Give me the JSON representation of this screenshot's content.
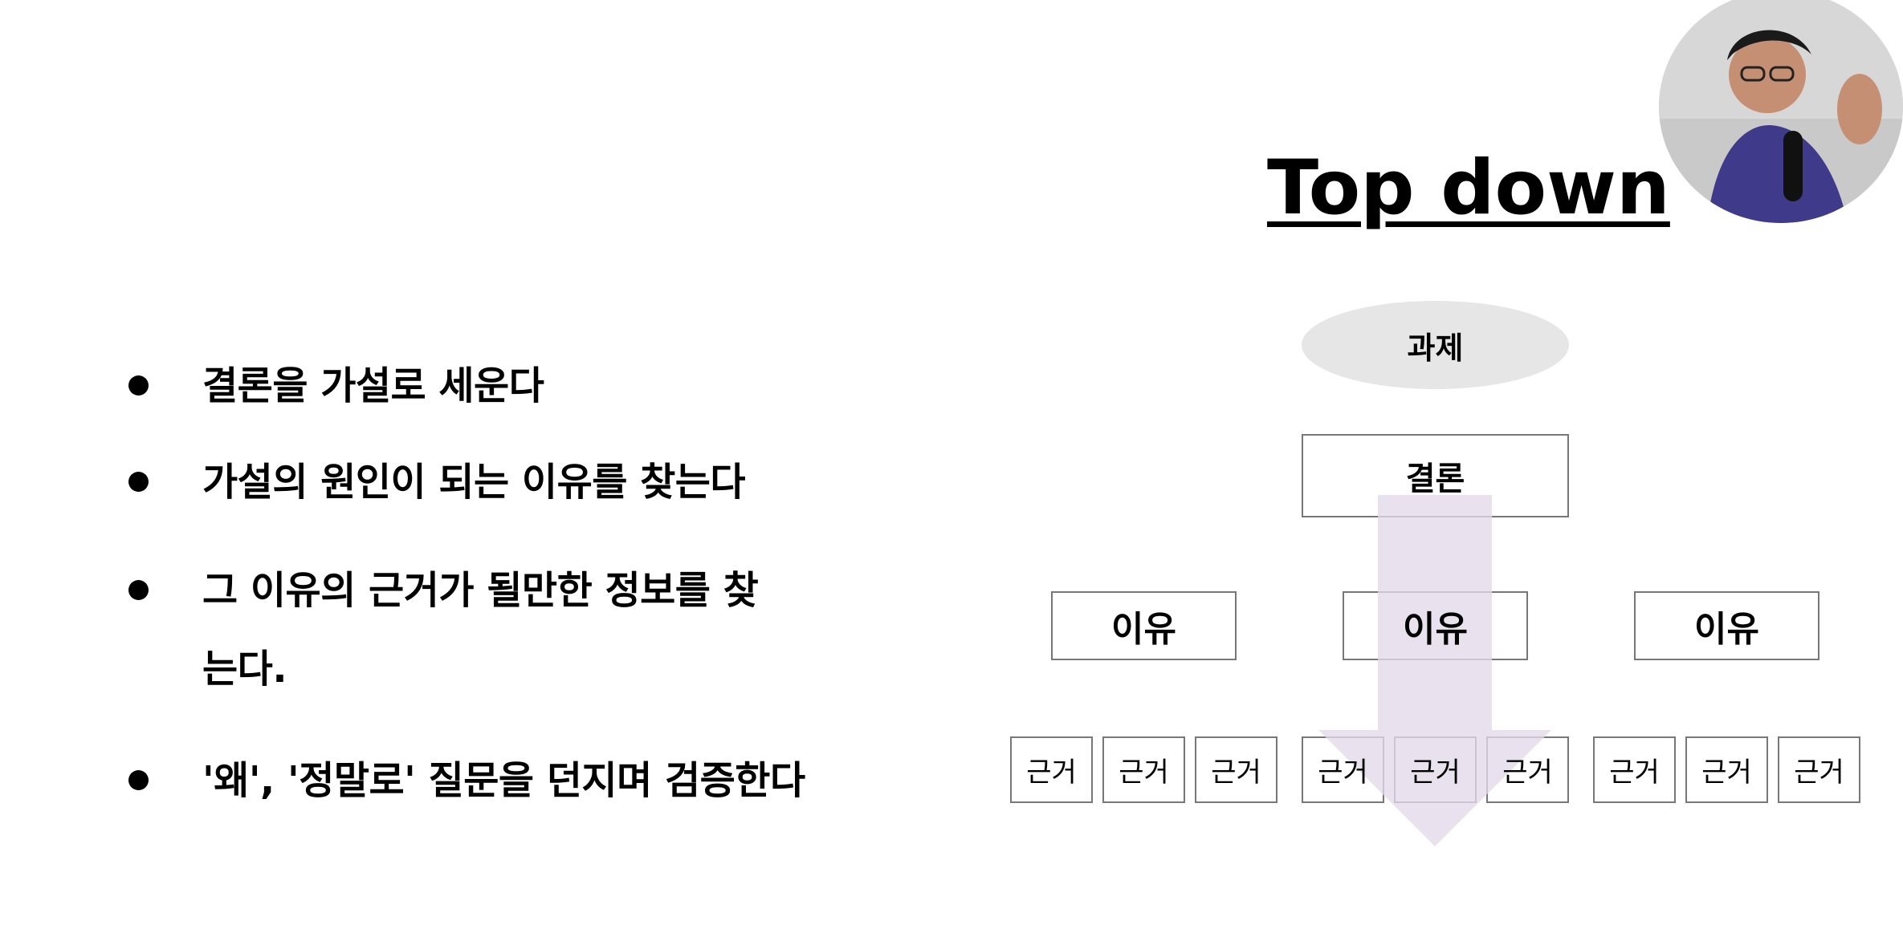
{
  "title": "Top down",
  "bullets": [
    "결론을 가설로 세운다",
    "가설의 원인이 되는 이유를 찾는다",
    "그 이유의 근거가 될만한 정보를 찾는다.",
    "'왜', '정말로' 질문을 던지며 검증한다"
  ],
  "diagram": {
    "task": "과제",
    "conclusion": "결론",
    "reasons": [
      "이유",
      "이유",
      "이유"
    ],
    "evidence": [
      "근거",
      "근거",
      "근거",
      "근거",
      "근거",
      "근거",
      "근거",
      "근거",
      "근거"
    ],
    "arrow_color": "#e4d8ea",
    "task_fill": "#e6e6e6"
  }
}
